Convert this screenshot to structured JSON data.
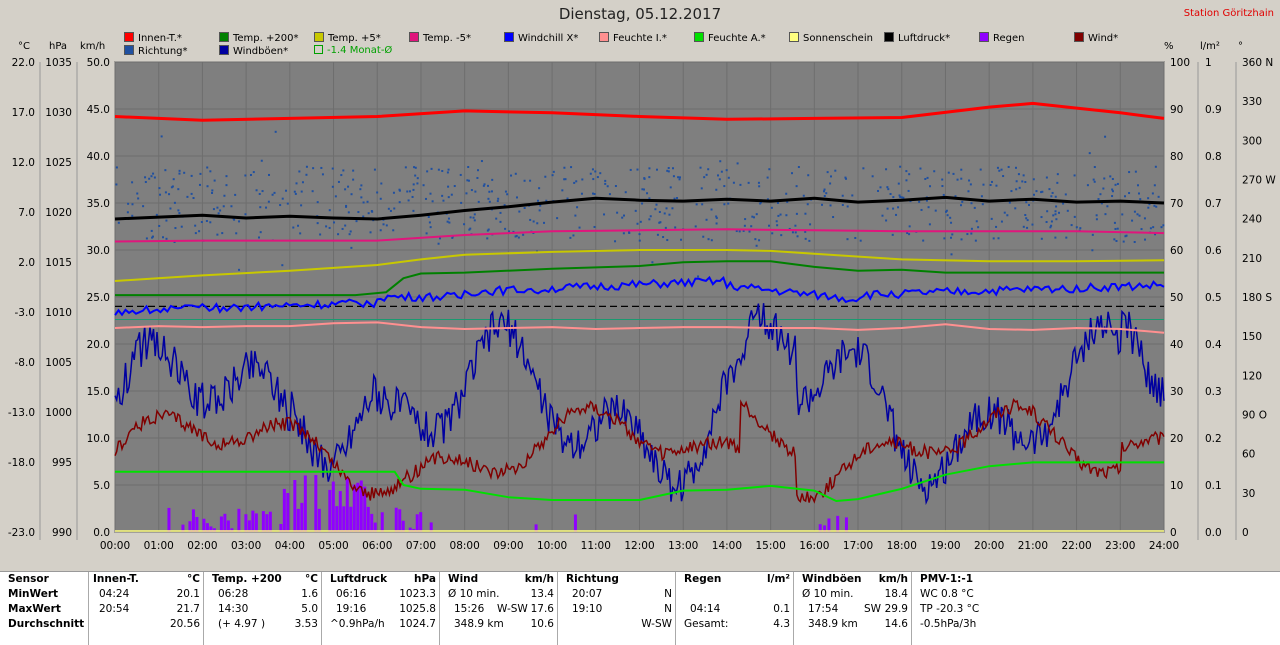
{
  "title": "Dienstag, 05.12.2017",
  "station": "Station Göritzhain",
  "legend": [
    {
      "label": "Innen-T.*",
      "color": "#ff0000"
    },
    {
      "label": "Temp. +200*",
      "color": "#008000"
    },
    {
      "label": "Temp. +5*",
      "color": "#c8c800"
    },
    {
      "label": "Temp. -5*",
      "color": "#e0157c"
    },
    {
      "label": "Windchill X*",
      "color": "#0000ff"
    },
    {
      "label": "Feuchte I.*",
      "color": "#ff9090"
    },
    {
      "label": "Feuchte A.*",
      "color": "#00e000"
    },
    {
      "label": "Sonnenschein",
      "color": "#ffff80"
    },
    {
      "label": "Luftdruck*",
      "color": "#000000"
    },
    {
      "label": "Regen",
      "color": "#9000ff"
    },
    {
      "label": "Wind*",
      "color": "#800000"
    },
    {
      "label": "Richtung*",
      "color": "#2050a0"
    },
    {
      "label": "Windböen*",
      "color": "#0000a0"
    },
    {
      "label": "-1.4 Monat-Ø",
      "color": "#00a000"
    }
  ],
  "units": {
    "celsius": "°C",
    "hpa": "hPa",
    "kmh": "km/h",
    "percent": "%",
    "lm2": "l/m²",
    "deg": "°"
  },
  "chart_data": {
    "type": "line",
    "x_ticks": [
      "00:00",
      "01:00",
      "02:00",
      "03:00",
      "04:00",
      "05:00",
      "06:00",
      "07:00",
      "08:00",
      "09:00",
      "10:00",
      "11:00",
      "12:00",
      "13:00",
      "14:00",
      "15:00",
      "16:00",
      "17:00",
      "18:00",
      "19:00",
      "20:00",
      "21:00",
      "22:00",
      "23:00",
      "24:00"
    ],
    "axes": {
      "temp_c": [
        "22.0",
        "17.0",
        "12.0",
        "7.0",
        "2.0",
        "-3.0",
        "-8.0",
        "-13.0",
        "-18.0",
        "-23.0"
      ],
      "pressure_hpa": [
        "1035",
        "1030",
        "1025",
        "1020",
        "1015",
        "1010",
        "1005",
        "1000",
        "995",
        "990"
      ],
      "wind_kmh": [
        "50.0",
        "45.0",
        "40.0",
        "35.0",
        "30.0",
        "25.0",
        "20.0",
        "15.0",
        "10.0",
        "5.0",
        "0.0"
      ],
      "humidity_pct": [
        "100",
        "90",
        "80",
        "70",
        "60",
        "50",
        "40",
        "30",
        "20",
        "10",
        "0"
      ],
      "rain_lm2": [
        "1",
        "0.9",
        "0.8",
        "0.7",
        "0.6",
        "0.5",
        "0.4",
        "0.3",
        "0.2",
        "0.1",
        "0.0"
      ],
      "direction_deg": [
        "360 N",
        "330",
        "300",
        "270 W",
        "240",
        "210",
        "180 S",
        "150",
        "120",
        "90 O",
        "60",
        "30",
        "0"
      ]
    },
    "ylim_kmh": [
      0,
      50
    ],
    "series": [
      {
        "name": "Innen-T.*",
        "color": "#ff0000",
        "unit": "km/h-scale",
        "x": [
          0,
          2,
          4,
          6,
          8,
          10,
          12,
          14,
          16,
          18,
          20,
          21,
          22,
          23,
          24
        ],
        "y": [
          44.2,
          43.8,
          44.0,
          44.2,
          44.8,
          44.6,
          44.2,
          43.9,
          44.0,
          44.1,
          45.2,
          45.6,
          45.1,
          44.6,
          44.0
        ]
      },
      {
        "name": "Temp. +200*",
        "color": "#008000",
        "x": [
          0,
          2,
          4,
          5.5,
          6.2,
          6.6,
          7,
          8,
          10,
          12,
          13,
          14,
          15,
          16,
          17,
          18,
          19,
          20,
          21,
          22,
          23,
          24
        ],
        "y": [
          25.2,
          25.2,
          25.2,
          25.2,
          25.5,
          27.0,
          27.5,
          27.6,
          28.0,
          28.3,
          28.7,
          28.8,
          28.8,
          28.2,
          27.8,
          27.9,
          27.6,
          27.6,
          27.6,
          27.6,
          27.6,
          27.6
        ]
      },
      {
        "name": "Temp. +5*",
        "color": "#c8c800",
        "x": [
          0,
          2,
          4,
          6,
          7,
          8,
          10,
          12,
          14,
          15,
          16,
          18,
          20,
          22,
          24
        ],
        "y": [
          26.7,
          27.3,
          27.8,
          28.4,
          29.0,
          29.5,
          29.8,
          30.0,
          30.0,
          29.9,
          29.6,
          29.0,
          28.8,
          28.8,
          28.9
        ]
      },
      {
        "name": "Temp. -5*",
        "color": "#e0157c",
        "x": [
          0,
          2,
          4,
          6,
          8,
          10,
          12,
          14,
          16,
          18,
          20,
          22,
          24
        ],
        "y": [
          30.9,
          31.0,
          31.0,
          31.0,
          31.6,
          32.0,
          32.1,
          32.2,
          32.1,
          32.0,
          32.0,
          32.0,
          31.8
        ]
      },
      {
        "name": "Feuchte I.*",
        "color": "#ff9090",
        "x": [
          0,
          1,
          2,
          3,
          4,
          5,
          6,
          7,
          8,
          9,
          10,
          11,
          12,
          13,
          14,
          15,
          16,
          17,
          18,
          19,
          20,
          21,
          22,
          23,
          24
        ],
        "y": [
          21.7,
          21.9,
          21.8,
          21.9,
          21.9,
          22.2,
          22.3,
          21.8,
          21.6,
          21.7,
          21.8,
          21.6,
          21.7,
          21.8,
          21.8,
          21.7,
          21.7,
          21.5,
          21.7,
          22.1,
          21.6,
          21.5,
          21.7,
          21.6,
          21.2
        ]
      },
      {
        "name": "Luftdruck*",
        "color": "#000000",
        "unit": "hPa",
        "x": [
          0,
          2,
          3,
          4,
          5,
          6,
          7,
          8,
          9,
          10,
          11,
          12,
          13,
          14,
          15,
          16,
          17,
          18,
          19,
          20,
          21,
          22,
          23,
          24
        ],
        "y": [
          1023.3,
          1023.7,
          1023.4,
          1023.6,
          1023.4,
          1023.3,
          1023.7,
          1024.2,
          1024.6,
          1025.1,
          1025.5,
          1025.3,
          1025.2,
          1025.4,
          1025.2,
          1025.5,
          1025.1,
          1025.3,
          1025.6,
          1025.2,
          1025.4,
          1025.1,
          1025.2,
          1025.0
        ]
      },
      {
        "name": "Feuchte A.*",
        "color": "#00e000",
        "x": [
          0,
          2,
          4,
          6.4,
          6.6,
          7,
          8,
          9,
          10,
          11,
          12,
          13,
          14,
          15,
          16,
          16.5,
          17,
          18,
          19,
          20,
          21,
          22,
          23,
          24
        ],
        "y": [
          6.4,
          6.4,
          6.4,
          6.4,
          5.0,
          4.6,
          4.5,
          3.7,
          3.4,
          3.4,
          3.4,
          4.4,
          4.5,
          4.9,
          4.4,
          3.3,
          3.5,
          4.6,
          6.1,
          7.0,
          7.4,
          7.4,
          7.4,
          7.4
        ]
      }
    ],
    "dashed_line": {
      "name": "-1.4 Monat-Ø",
      "value": 24.0
    }
  },
  "table": {
    "sensor": {
      "h": "Sensor",
      "rows": [
        "MinWert",
        "MaxWert",
        "Durchschnitt"
      ]
    },
    "innen": {
      "h": "Innen-T.",
      "u": "°C",
      "rows": [
        [
          "04:24",
          "20.1"
        ],
        [
          "20:54",
          "21.7"
        ],
        [
          "",
          "20.56"
        ]
      ]
    },
    "temp200": {
      "h": "Temp. +200",
      "u": "°C",
      "rows": [
        [
          "06:28",
          "1.6"
        ],
        [
          "14:30",
          "5.0"
        ],
        [
          "(+ 4.97 )",
          "3.53"
        ]
      ]
    },
    "luft": {
      "h": "Luftdruck",
      "u": "hPa",
      "rows": [
        [
          "06:16",
          "1023.3"
        ],
        [
          "19:16",
          "1025.8"
        ],
        [
          "^0.9hPa/h",
          "1024.7"
        ]
      ]
    },
    "wind": {
      "h": "Wind",
      "u": "km/h",
      "rows": [
        [
          "Ø 10 min.",
          "",
          "13.4"
        ],
        [
          "15:26",
          "W-SW",
          "17.6"
        ],
        [
          "348.9 km",
          "",
          "10.6"
        ]
      ]
    },
    "richtung": {
      "h": "Richtung",
      "rows": [
        [
          "20:07",
          "N"
        ],
        [
          "19:10",
          "N"
        ],
        [
          "",
          "W-SW"
        ]
      ]
    },
    "regen": {
      "h": "Regen",
      "u": "l/m²",
      "rows": [
        [
          "",
          ""
        ],
        [
          "04:14",
          "0.1"
        ],
        [
          "Gesamt:",
          "4.3"
        ]
      ]
    },
    "boen": {
      "h": "Windböen",
      "u": "km/h",
      "rows": [
        [
          "Ø 10 min.",
          "",
          "18.4"
        ],
        [
          "17:54",
          "SW",
          "29.9"
        ],
        [
          "348.9 km",
          "",
          "14.6"
        ]
      ]
    },
    "pmv": {
      "h": "PMV-1:-1",
      "rows": [
        "WC 0.8 °C",
        "TP -20.3 °C",
        "-0.5hPa/3h"
      ]
    }
  }
}
